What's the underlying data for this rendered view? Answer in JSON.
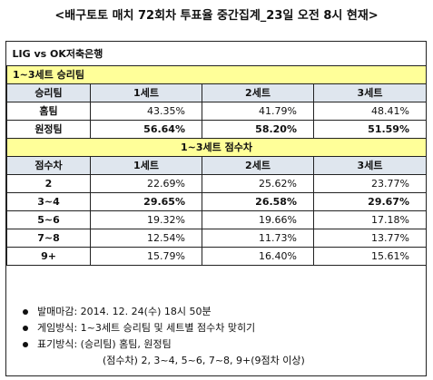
{
  "title": "<배구토토 매치 72회차 투표율 중간집계_23일 오전 8시 현재>",
  "match": "LIG vs OK저축은행",
  "section_win": "1~3세트 승리팀",
  "win_headers": [
    "승리팀",
    "1세트",
    "2세트",
    "3세트"
  ],
  "win_rows": [
    {
      "label": "홈팀",
      "values": [
        "43.35%",
        "41.79%",
        "48.41%"
      ]
    },
    {
      "label": "원정팀",
      "values": [
        "56.64%",
        "58.20%",
        "51.59%"
      ]
    }
  ],
  "section_diff": "1~3세트 점수차",
  "diff_headers": [
    "점수차",
    "1세트",
    "2세트",
    "3세트"
  ],
  "diff_rows": [
    {
      "label": "2",
      "values": [
        "22.69%",
        "25.62%",
        "23.77%"
      ]
    },
    {
      "label": "3~4",
      "values": [
        "29.65%",
        "26.58%",
        "29.67%"
      ]
    },
    {
      "label": "5~6",
      "values": [
        "19.32%",
        "19.66%",
        "17.18%"
      ]
    },
    {
      "label": "7~8",
      "values": [
        "12.54%",
        "11.73%",
        "13.77%"
      ]
    },
    {
      "label": "9+",
      "values": [
        "15.79%",
        "16.40%",
        "15.61%"
      ]
    }
  ],
  "notes": {
    "deadline": "발매마감: 2014. 12. 24(수) 18시 50분",
    "method": "게임방식: 1~3세트 승리팀 및 세트별 점수차 맞히기",
    "notation": "표기방식: (승리팀) 홈팀, 원정팀",
    "notation_sub": "(점수차) 2, 3~4, 5~6, 7~8, 9+(9점차 이상)"
  }
}
